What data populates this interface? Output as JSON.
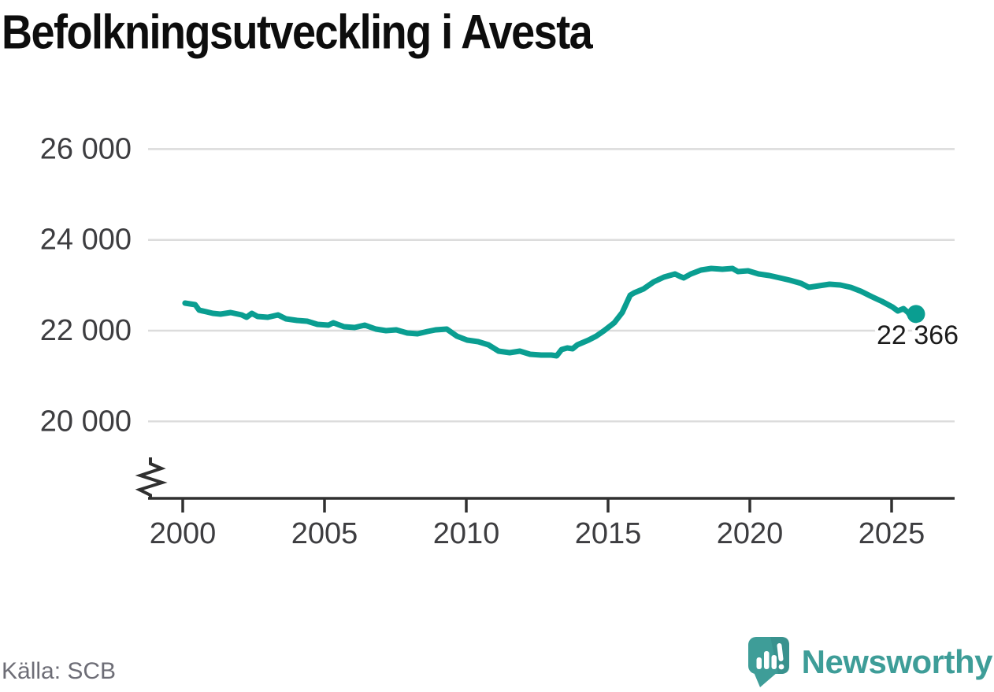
{
  "title": "Befolkningsutveckling i Avesta",
  "source": "Källa: SCB",
  "brand": {
    "name": "Newsworthy",
    "color": "#3e9d98",
    "icon": "speech-bubble-bar-chart"
  },
  "colors": {
    "line": "#0a9e91",
    "grid": "#dcdcdc",
    "axis": "#303030",
    "tick_text": "#3d3d40",
    "value_label": "#1b1b1b"
  },
  "chart_data": {
    "type": "line",
    "title": "Befolkningsutveckling i Avesta",
    "source": "Källa: SCB",
    "xlabel": "",
    "ylabel": "",
    "x_ticks": [
      2000,
      2005,
      2010,
      2015,
      2020,
      2025
    ],
    "x_range": [
      1998.8,
      2027.2
    ],
    "y_ticks": [
      {
        "value": 20000,
        "label": "20 000"
      },
      {
        "value": 22000,
        "label": "22 000"
      },
      {
        "value": 24000,
        "label": "24 000"
      },
      {
        "value": 26000,
        "label": "26 000"
      }
    ],
    "y_range_shown": [
      19300,
      26600
    ],
    "y_axis_break": true,
    "grid": true,
    "legend": "none",
    "last_value": 22366,
    "last_value_label": "22 366",
    "series": [
      {
        "name": "Befolkning i Avesta",
        "points": [
          [
            2000.08,
            22607
          ],
          [
            2000.44,
            22572
          ],
          [
            2000.58,
            22451
          ],
          [
            2000.83,
            22416
          ],
          [
            2001.06,
            22382
          ],
          [
            2001.33,
            22364
          ],
          [
            2001.69,
            22399
          ],
          [
            2002.08,
            22347
          ],
          [
            2002.25,
            22295
          ],
          [
            2002.44,
            22382
          ],
          [
            2002.64,
            22312
          ],
          [
            2003.0,
            22295
          ],
          [
            2003.36,
            22347
          ],
          [
            2003.64,
            22260
          ],
          [
            2004.03,
            22225
          ],
          [
            2004.39,
            22208
          ],
          [
            2004.75,
            22139
          ],
          [
            2005.14,
            22121
          ],
          [
            2005.31,
            22173
          ],
          [
            2005.69,
            22087
          ],
          [
            2006.06,
            22069
          ],
          [
            2006.42,
            22121
          ],
          [
            2006.81,
            22035
          ],
          [
            2007.17,
            22000
          ],
          [
            2007.53,
            22017
          ],
          [
            2007.92,
            21948
          ],
          [
            2008.28,
            21931
          ],
          [
            2008.64,
            21983
          ],
          [
            2008.92,
            22017
          ],
          [
            2009.31,
            22035
          ],
          [
            2009.67,
            21879
          ],
          [
            2010.03,
            21792
          ],
          [
            2010.42,
            21757
          ],
          [
            2010.78,
            21688
          ],
          [
            2011.14,
            21549
          ],
          [
            2011.53,
            21514
          ],
          [
            2011.89,
            21549
          ],
          [
            2012.25,
            21480
          ],
          [
            2012.64,
            21462
          ],
          [
            2013.0,
            21462
          ],
          [
            2013.19,
            21445
          ],
          [
            2013.36,
            21584
          ],
          [
            2013.56,
            21618
          ],
          [
            2013.75,
            21601
          ],
          [
            2013.92,
            21688
          ],
          [
            2014.31,
            21792
          ],
          [
            2014.58,
            21879
          ],
          [
            2014.86,
            22000
          ],
          [
            2015.22,
            22173
          ],
          [
            2015.5,
            22399
          ],
          [
            2015.78,
            22781
          ],
          [
            2015.92,
            22833
          ],
          [
            2016.25,
            22919
          ],
          [
            2016.61,
            23075
          ],
          [
            2016.97,
            23179
          ],
          [
            2017.36,
            23249
          ],
          [
            2017.53,
            23197
          ],
          [
            2017.67,
            23162
          ],
          [
            2017.92,
            23249
          ],
          [
            2018.28,
            23336
          ],
          [
            2018.64,
            23370
          ],
          [
            2019.03,
            23353
          ],
          [
            2019.39,
            23370
          ],
          [
            2019.58,
            23301
          ],
          [
            2019.94,
            23318
          ],
          [
            2020.31,
            23249
          ],
          [
            2020.69,
            23214
          ],
          [
            2021.06,
            23162
          ],
          [
            2021.42,
            23110
          ],
          [
            2021.81,
            23041
          ],
          [
            2022.08,
            22954
          ],
          [
            2022.44,
            22989
          ],
          [
            2022.81,
            23023
          ],
          [
            2023.19,
            23006
          ],
          [
            2023.56,
            22954
          ],
          [
            2023.92,
            22867
          ],
          [
            2024.31,
            22746
          ],
          [
            2024.67,
            22642
          ],
          [
            2025.03,
            22520
          ],
          [
            2025.22,
            22434
          ],
          [
            2025.42,
            22486
          ],
          [
            2025.58,
            22399
          ],
          [
            2025.69,
            22295
          ],
          [
            2025.86,
            22366
          ]
        ]
      }
    ]
  }
}
